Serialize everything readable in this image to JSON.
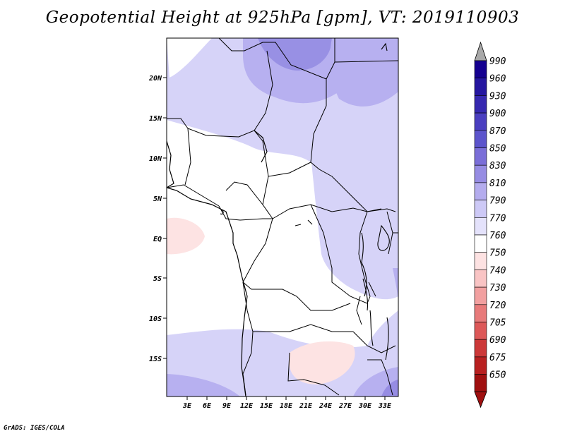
{
  "title": "Geopotential Height at 925hPa [gpm], VT: 2019110903",
  "credit": "GrADS: IGES/COLA",
  "map": {
    "lat_labels": [
      "20N",
      "15N",
      "10N",
      "5N",
      "EQ",
      "5S",
      "10S",
      "15S"
    ],
    "lon_labels": [
      "3E",
      "6E",
      "9E",
      "12E",
      "15E",
      "18E",
      "21E",
      "24E",
      "27E",
      "30E",
      "33E"
    ]
  },
  "colorbar": {
    "levels": [
      "990",
      "960",
      "930",
      "900",
      "870",
      "850",
      "830",
      "810",
      "790",
      "770",
      "760",
      "750",
      "740",
      "730",
      "720",
      "705",
      "690",
      "675",
      "650"
    ],
    "colors": [
      "#150090",
      "#2516a0",
      "#3628b0",
      "#4a3ec0",
      "#5c54cc",
      "#7a6ed8",
      "#968ce3",
      "#b4acee",
      "#cdc9f6",
      "#e4e2fb",
      "#ffffff",
      "#fde2e2",
      "#f9c4c4",
      "#f2a0a0",
      "#e87a7a",
      "#dd5858",
      "#cc3838",
      "#b82020",
      "#a01010"
    ],
    "top_arrow_color": "#a8a8a8",
    "bottom_arrow_color": "#a01010"
  }
}
